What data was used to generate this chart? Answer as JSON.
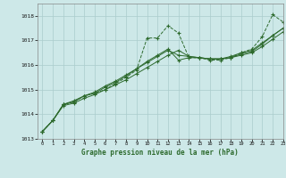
{
  "title": "Graphe pression niveau de la mer (hPa)",
  "bg_color": "#cde8e8",
  "grid_color": "#aacccc",
  "line_color": "#2d6a2d",
  "marker_color": "#2d6a2d",
  "xlim": [
    -0.5,
    23
  ],
  "ylim": [
    1013,
    1018.5
  ],
  "yticks": [
    1013,
    1014,
    1015,
    1016,
    1017,
    1018
  ],
  "xticks": [
    0,
    1,
    2,
    3,
    4,
    5,
    6,
    7,
    8,
    9,
    10,
    11,
    12,
    13,
    14,
    15,
    16,
    17,
    18,
    19,
    20,
    21,
    22,
    23
  ],
  "series1": {
    "x": [
      0,
      1,
      2,
      3,
      4,
      5,
      6,
      7,
      8,
      9,
      10,
      11,
      12,
      13,
      14,
      15,
      16,
      17,
      18,
      19,
      20,
      21,
      22,
      23
    ],
    "y": [
      1013.3,
      1013.75,
      1014.4,
      1014.5,
      1014.75,
      1014.85,
      1015.0,
      1015.25,
      1015.5,
      1015.8,
      1017.1,
      1017.1,
      1017.6,
      1017.3,
      1016.3,
      1016.3,
      1016.2,
      1016.2,
      1016.3,
      1016.5,
      1016.65,
      1017.15,
      1018.05,
      1017.75
    ]
  },
  "series2": {
    "x": [
      0,
      1,
      2,
      3,
      4,
      5,
      6,
      7,
      8,
      9,
      10,
      11,
      12,
      13,
      14,
      15,
      16,
      17,
      18,
      19,
      20,
      21,
      22,
      23
    ],
    "y": [
      1013.3,
      1013.75,
      1014.4,
      1014.5,
      1014.75,
      1014.85,
      1015.1,
      1015.3,
      1015.55,
      1015.85,
      1016.1,
      1016.35,
      1016.6,
      1016.4,
      1016.35,
      1016.3,
      1016.25,
      1016.25,
      1016.3,
      1016.45,
      1016.55,
      1016.85,
      1017.2,
      1017.5
    ]
  },
  "series3": {
    "x": [
      0,
      1,
      2,
      3,
      4,
      5,
      6,
      7,
      8,
      9,
      10,
      11,
      12,
      13,
      14,
      15,
      16,
      17,
      18,
      19,
      20,
      21,
      22,
      23
    ],
    "y": [
      1013.3,
      1013.75,
      1014.35,
      1014.45,
      1014.65,
      1014.8,
      1015.0,
      1015.2,
      1015.4,
      1015.65,
      1015.9,
      1016.15,
      1016.4,
      1016.6,
      1016.35,
      1016.3,
      1016.25,
      1016.25,
      1016.3,
      1016.4,
      1016.5,
      1016.75,
      1017.05,
      1017.35
    ]
  },
  "series4": {
    "x": [
      0,
      1,
      2,
      3,
      4,
      5,
      6,
      7,
      8,
      9,
      10,
      11,
      12,
      13,
      14,
      15,
      16,
      17,
      18,
      19,
      20,
      21,
      22,
      23
    ],
    "y": [
      1013.3,
      1013.75,
      1014.4,
      1014.55,
      1014.75,
      1014.9,
      1015.15,
      1015.35,
      1015.6,
      1015.85,
      1016.15,
      1016.4,
      1016.65,
      1016.2,
      1016.3,
      1016.3,
      1016.25,
      1016.25,
      1016.35,
      1016.5,
      1016.6,
      1016.9,
      1017.2,
      1017.5
    ]
  }
}
